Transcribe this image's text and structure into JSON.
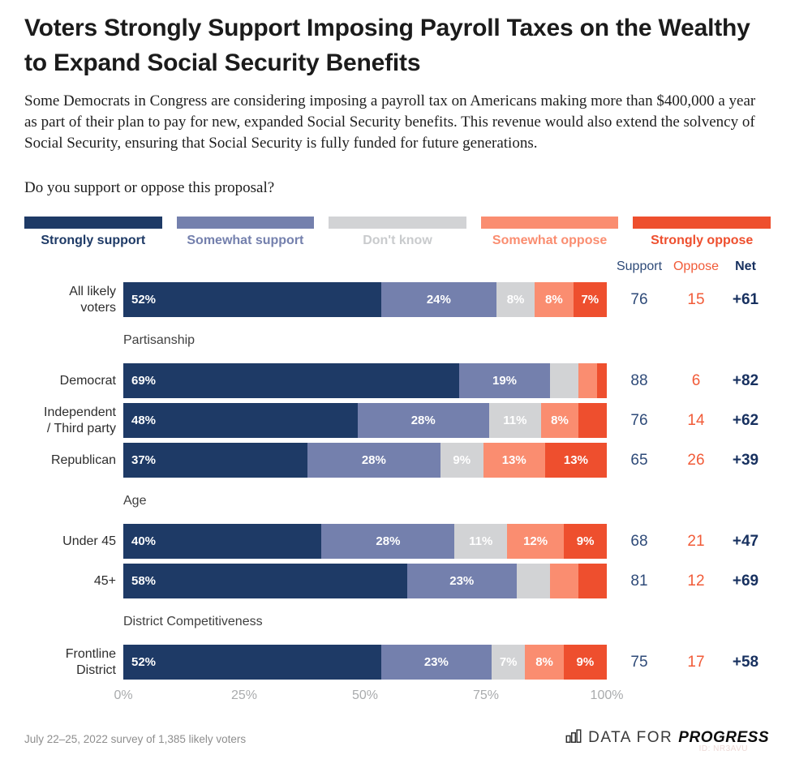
{
  "title": "Voters Strongly Support Imposing Payroll Taxes on the Wealthy to Expand Social Security Benefits",
  "description": "Some Democrats in Congress are considering imposing a payroll tax on Americans making more than $400,000 a year as part of their plan to pay for new, expanded Social Security benefits. This revenue would also extend the solvency of Social Security, ensuring that Social Security is fully funded for future generations.",
  "question": "Do you support or oppose this proposal?",
  "legend": [
    {
      "label": "Strongly support",
      "color": "#1e3a66",
      "text_color": "#1e3a66"
    },
    {
      "label": "Somewhat support",
      "color": "#7480ad",
      "text_color": "#7480ad"
    },
    {
      "label": "Don't know",
      "color": "#d2d3d5",
      "text_color": "#c9cbcd"
    },
    {
      "label": "Somewhat oppose",
      "color": "#fa8d70",
      "text_color": "#fa8d70"
    },
    {
      "label": "Strongly oppose",
      "color": "#ee4f2e",
      "text_color": "#ee4f2e"
    }
  ],
  "columns": {
    "support": "Support",
    "oppose": "Oppose",
    "net": "Net"
  },
  "chart_data": {
    "type": "bar",
    "orientation": "horizontal-stacked",
    "series_names": [
      "Strongly support",
      "Somewhat support",
      "Don't know",
      "Somewhat oppose",
      "Strongly oppose"
    ],
    "series_colors": [
      "#1e3a66",
      "#7480ad",
      "#d2d3d5",
      "#fa8d70",
      "#ee4f2e"
    ],
    "axis_ticks": [
      "0%",
      "25%",
      "50%",
      "75%",
      "100%"
    ],
    "xlim": [
      0,
      100
    ],
    "groups": [
      {
        "header": null,
        "rows": [
          {
            "label_lines": [
              "All likely",
              "voters"
            ],
            "values": [
              52,
              24,
              8,
              8,
              7
            ],
            "value_labels": [
              "52%",
              "24%",
              "8%",
              "8%",
              "7%"
            ],
            "support": "76",
            "oppose": "15",
            "net": "+61"
          }
        ]
      },
      {
        "header": "Partisanship",
        "rows": [
          {
            "label_lines": [
              "Democrat"
            ],
            "values": [
              69,
              19,
              6,
              4,
              2
            ],
            "value_labels": [
              "69%",
              "19%",
              "",
              "",
              ""
            ],
            "support": "88",
            "oppose": "6",
            "net": "+82"
          },
          {
            "label_lines": [
              "Independent",
              "/ Third party"
            ],
            "values": [
              48,
              28,
              11,
              8,
              6
            ],
            "value_labels": [
              "48%",
              "28%",
              "11%",
              "8%",
              ""
            ],
            "support": "76",
            "oppose": "14",
            "net": "+62"
          },
          {
            "label_lines": [
              "Republican"
            ],
            "values": [
              37,
              28,
              9,
              13,
              13
            ],
            "value_labels": [
              "37%",
              "28%",
              "9%",
              "13%",
              "13%"
            ],
            "support": "65",
            "oppose": "26",
            "net": "+39"
          }
        ]
      },
      {
        "header": "Age",
        "rows": [
          {
            "label_lines": [
              "Under 45"
            ],
            "values": [
              40,
              28,
              11,
              12,
              9
            ],
            "value_labels": [
              "40%",
              "28%",
              "11%",
              "12%",
              "9%"
            ],
            "support": "68",
            "oppose": "21",
            "net": "+47"
          },
          {
            "label_lines": [
              "45+"
            ],
            "values": [
              58,
              23,
              7,
              6,
              6
            ],
            "value_labels": [
              "58%",
              "23%",
              "",
              "",
              ""
            ],
            "support": "81",
            "oppose": "12",
            "net": "+69"
          }
        ]
      },
      {
        "header": "District Competitiveness",
        "rows": [
          {
            "label_lines": [
              "Frontline",
              "District"
            ],
            "values": [
              52,
              23,
              7,
              8,
              9
            ],
            "value_labels": [
              "52%",
              "23%",
              "7%",
              "8%",
              "9%"
            ],
            "support": "75",
            "oppose": "17",
            "net": "+58"
          }
        ]
      }
    ]
  },
  "footnote": "July 22–25, 2022 survey of 1,385 likely voters",
  "logo": {
    "data_for": "DATA FOR",
    "progress": "PROGRESS",
    "watermark": "ID: NR3AVU"
  },
  "colors": {
    "support_text": "#2e4a78",
    "oppose_text": "#f15b38",
    "net_text": "#17305f",
    "axis_text": "#a9abad",
    "section_header_text": "#3f3f3f"
  }
}
